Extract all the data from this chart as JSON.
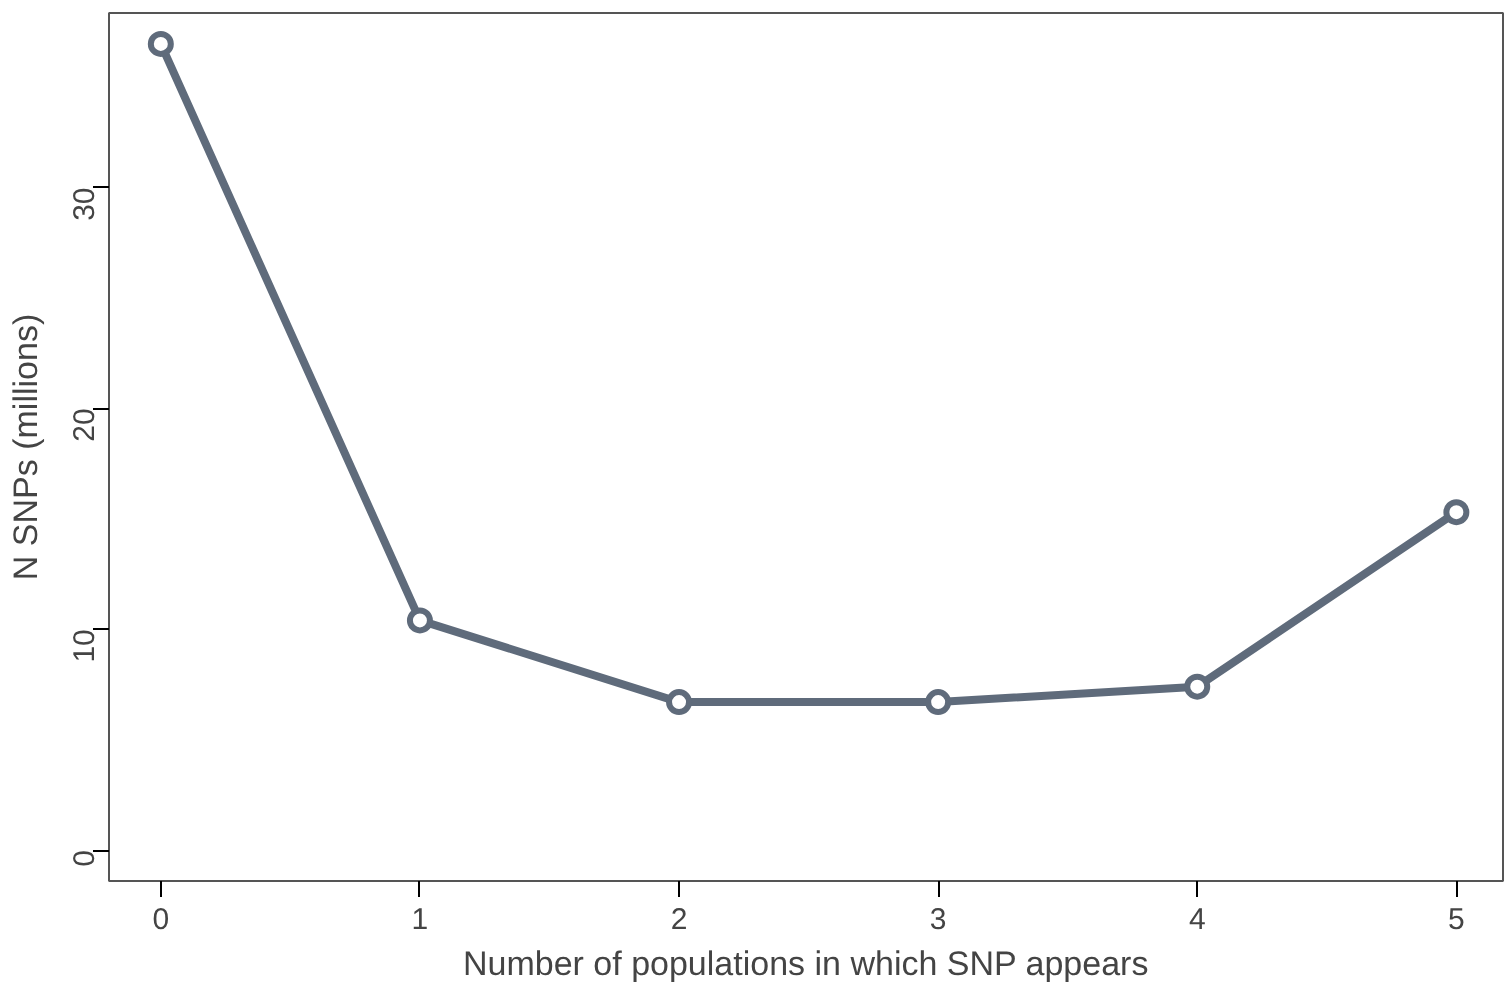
{
  "chart_data": {
    "type": "line",
    "xlabel": "Number of populations in which SNP appears",
    "ylabel": "N SNPs (millions)",
    "x": [
      0,
      1,
      2,
      3,
      4,
      5
    ],
    "series": [
      {
        "color": "#5f6b7b",
        "values": [
          36.5,
          10.4,
          6.7,
          6.7,
          7.4,
          15.3
        ]
      }
    ],
    "xlim": [
      -0.2,
      5.18
    ],
    "ylim": [
      -1.4,
      37.9
    ],
    "xticks": [
      0,
      1,
      2,
      3,
      4,
      5
    ],
    "yticks": [
      0,
      10,
      20,
      30
    ],
    "grid": false,
    "marker": "circle",
    "line_style": "solid"
  }
}
